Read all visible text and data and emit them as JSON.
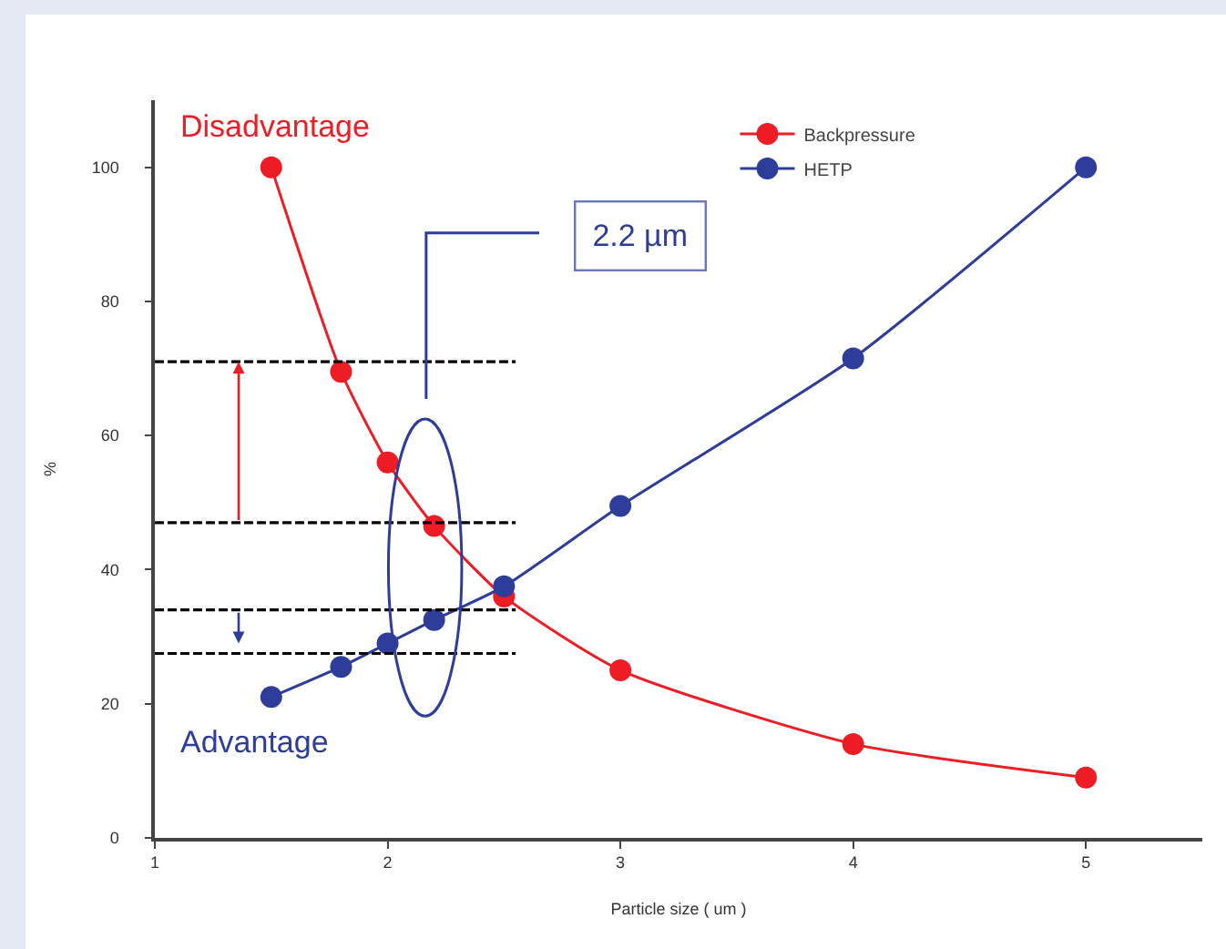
{
  "chart_data": {
    "type": "line",
    "xlabel": "Particle size ( um )",
    "ylabel": "%",
    "xlim": [
      1,
      5.5
    ],
    "ylim": [
      0,
      110
    ],
    "xticks": [
      1,
      2,
      3,
      4,
      5
    ],
    "yticks": [
      0,
      20,
      40,
      60,
      80,
      100
    ],
    "grid": false,
    "legend": "top right",
    "marker": "circle",
    "line_style": "solid",
    "series": [
      {
        "name": "Backpressure",
        "color": "#ee1c25",
        "x": [
          1.5,
          1.8,
          2,
          2.2,
          2.5,
          3,
          4,
          5
        ],
        "values": [
          100,
          69.5,
          56,
          46.5,
          36,
          25,
          14,
          9
        ]
      },
      {
        "name": "HETP",
        "color": "#2e3d99",
        "x": [
          1.5,
          1.8,
          2,
          2.2,
          2.5,
          3,
          4,
          5
        ],
        "values": [
          21,
          25.5,
          29,
          32.5,
          37.5,
          49.5,
          71.5,
          100
        ]
      },
      {
        "color": "#000000",
        "x": [
          1,
          2.55
        ],
        "values": [
          71,
          71
        ],
        "marker": "none",
        "line_style": "dashed"
      },
      {
        "color": "#000000",
        "x": [
          1,
          2.55
        ],
        "values": [
          47,
          47
        ],
        "marker": "none",
        "line_style": "dashed"
      },
      {
        "color": "#000000",
        "x": [
          1,
          2.55
        ],
        "values": [
          34,
          34
        ],
        "marker": "none",
        "line_style": "dashed"
      },
      {
        "color": "#000000",
        "x": [
          1,
          2.55
        ],
        "values": [
          27.5,
          27.5
        ],
        "marker": "none",
        "line_style": "dashed"
      }
    ],
    "annotations": [
      "Disadvantage",
      "Advantage",
      "2.2 µm"
    ]
  }
}
